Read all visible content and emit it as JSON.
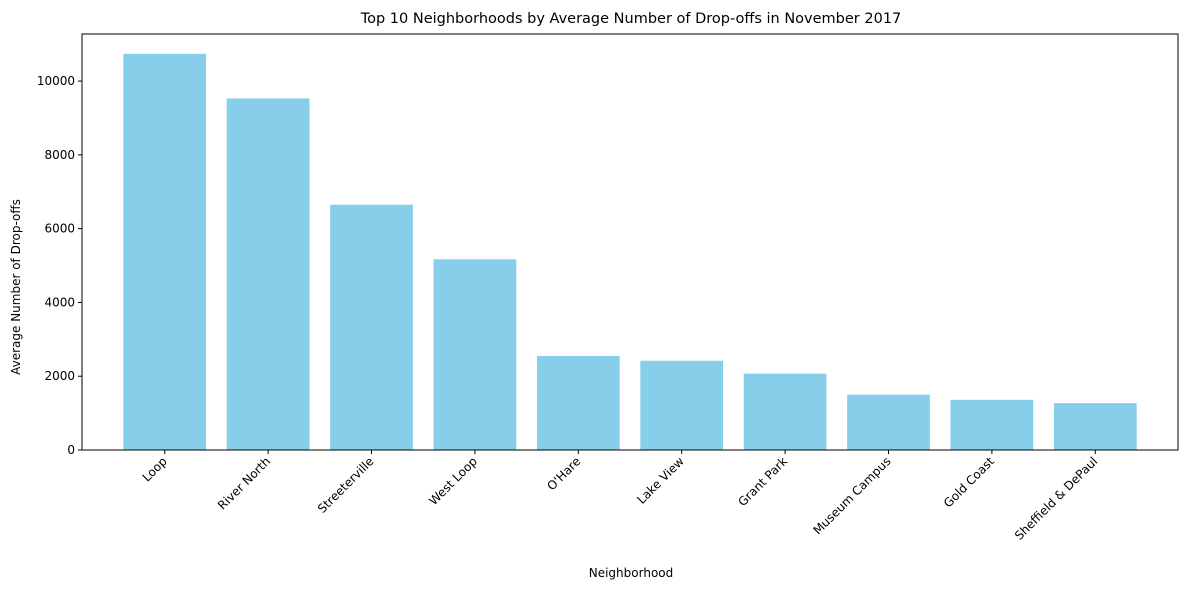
{
  "chart_data": {
    "type": "bar",
    "title": "Top 10 Neighborhoods by Average Number of Drop-offs in November 2017",
    "xlabel": "Neighborhood",
    "ylabel": "Average Number of Drop-offs",
    "categories": [
      "Loop",
      "River North",
      "Streeterville",
      "West Loop",
      "O'Hare",
      "Lake View",
      "Grant Park",
      "Museum Campus",
      "Gold Coast",
      "Sheffield & DePaul"
    ],
    "values": [
      10740,
      9530,
      6650,
      5170,
      2550,
      2420,
      2070,
      1500,
      1360,
      1270
    ],
    "ylim": [
      0,
      11277
    ],
    "yticks": [
      0,
      2000,
      4000,
      6000,
      8000,
      10000
    ],
    "ytick_labels": [
      "0",
      "2000",
      "4000",
      "6000",
      "8000",
      "10000"
    ],
    "bar_color": "#87ceeb",
    "grid": false,
    "legend": "none",
    "xtick_rotation_deg": 45
  }
}
